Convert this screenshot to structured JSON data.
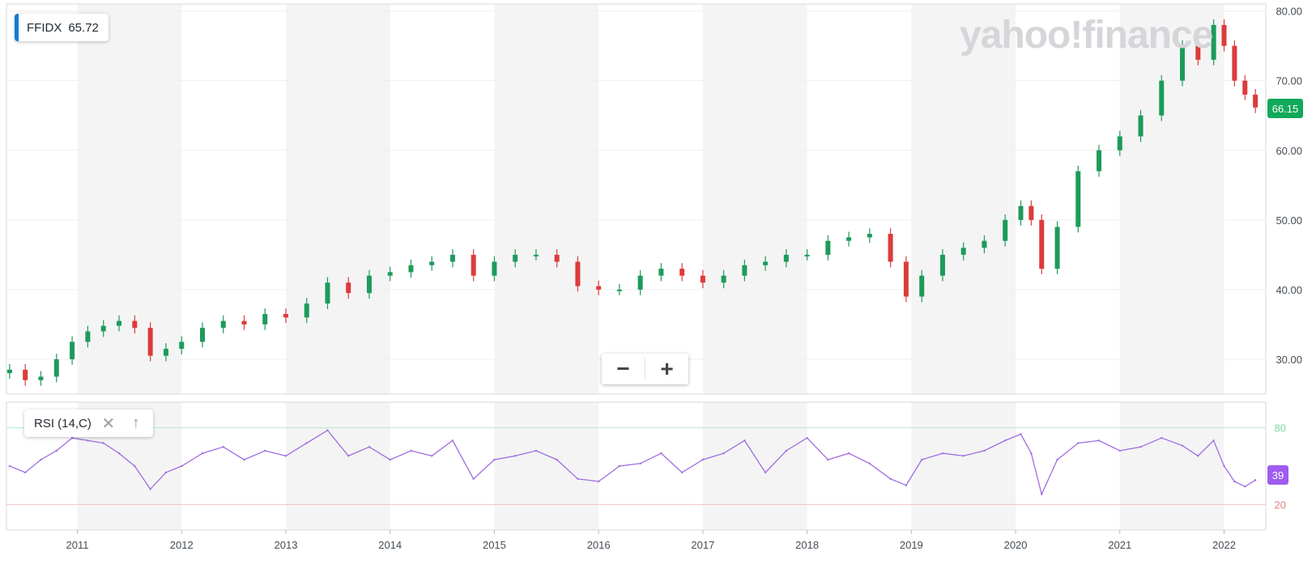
{
  "watermark": "yahoo!finance",
  "legend": {
    "symbol": "FFIDX",
    "value": "65.72"
  },
  "last_price_label": "66.15",
  "indicator": {
    "label": "RSI (14,C)",
    "last_label": "39",
    "close_icon": "close-icon",
    "move_icon": "arrow-up-icon"
  },
  "zoom": {
    "out_label": "−",
    "in_label": "+"
  },
  "colors": {
    "up": "#1c9b5b",
    "down": "#dd3b3b",
    "rsi": "#a06de0",
    "price_badge": "#11a95a",
    "rsi_badge": "#a05cf0"
  },
  "chart_data": [
    {
      "type": "candlestick",
      "symbol": "FFIDX",
      "x_range": [
        2010.32,
        2022.4
      ],
      "ylim": [
        25,
        81
      ],
      "y_ticks": [
        "30.00",
        "40.00",
        "50.00",
        "60.00",
        "70.00",
        "80.00"
      ],
      "x_ticks": [
        "2011",
        "2012",
        "2013",
        "2014",
        "2015",
        "2016",
        "2017",
        "2018",
        "2019",
        "2020",
        "2021",
        "2022"
      ],
      "grid": true,
      "alternating_year_bands": true,
      "series": {
        "x": [
          2010.35,
          2010.5,
          2010.65,
          2010.8,
          2010.95,
          2011.1,
          2011.25,
          2011.4,
          2011.55,
          2011.7,
          2011.85,
          2012.0,
          2012.2,
          2012.4,
          2012.6,
          2012.8,
          2013.0,
          2013.2,
          2013.4,
          2013.6,
          2013.8,
          2014.0,
          2014.2,
          2014.4,
          2014.6,
          2014.8,
          2015.0,
          2015.2,
          2015.4,
          2015.6,
          2015.8,
          2016.0,
          2016.2,
          2016.4,
          2016.6,
          2016.8,
          2017.0,
          2017.2,
          2017.4,
          2017.6,
          2017.8,
          2018.0,
          2018.2,
          2018.4,
          2018.6,
          2018.8,
          2018.95,
          2019.1,
          2019.3,
          2019.5,
          2019.7,
          2019.9,
          2020.05,
          2020.15,
          2020.25,
          2020.4,
          2020.6,
          2020.8,
          2021.0,
          2021.2,
          2021.4,
          2021.6,
          2021.75,
          2021.9,
          2022.0,
          2022.1,
          2022.2,
          2022.3
        ],
        "values": [
          28.5,
          27,
          27.5,
          30,
          32.5,
          34,
          34.8,
          35.5,
          34.5,
          30.5,
          31.5,
          32.5,
          34.5,
          35.5,
          35,
          36.5,
          36,
          38,
          41,
          39.5,
          42,
          42.5,
          43.5,
          44,
          45,
          42,
          44,
          45,
          45,
          44,
          40.5,
          40,
          40,
          42,
          43,
          42,
          41,
          42,
          43.5,
          44,
          45,
          45,
          47,
          47.5,
          48,
          44,
          39,
          42,
          45,
          46,
          47,
          50,
          52,
          50,
          43,
          49,
          57,
          60,
          62,
          65,
          70,
          75,
          73,
          78,
          75,
          70,
          68,
          66.15
        ]
      }
    },
    {
      "type": "line",
      "name": "RSI (14,C)",
      "ylim": [
        0,
        100
      ],
      "y_ticks": [
        "20",
        "80"
      ],
      "series": {
        "x": [
          2010.35,
          2010.5,
          2010.65,
          2010.8,
          2010.95,
          2011.1,
          2011.25,
          2011.4,
          2011.55,
          2011.7,
          2011.85,
          2012.0,
          2012.2,
          2012.4,
          2012.6,
          2012.8,
          2013.0,
          2013.2,
          2013.4,
          2013.6,
          2013.8,
          2014.0,
          2014.2,
          2014.4,
          2014.6,
          2014.8,
          2015.0,
          2015.2,
          2015.4,
          2015.6,
          2015.8,
          2016.0,
          2016.2,
          2016.4,
          2016.6,
          2016.8,
          2017.0,
          2017.2,
          2017.4,
          2017.6,
          2017.8,
          2018.0,
          2018.2,
          2018.4,
          2018.6,
          2018.8,
          2018.95,
          2019.1,
          2019.3,
          2019.5,
          2019.7,
          2019.9,
          2020.05,
          2020.15,
          2020.25,
          2020.4,
          2020.6,
          2020.8,
          2021.0,
          2021.2,
          2021.4,
          2021.6,
          2021.75,
          2021.9,
          2022.0,
          2022.1,
          2022.2,
          2022.3
        ],
        "values": [
          50,
          45,
          55,
          62,
          72,
          70,
          68,
          60,
          50,
          32,
          45,
          50,
          60,
          65,
          55,
          62,
          58,
          68,
          78,
          58,
          65,
          55,
          62,
          58,
          70,
          40,
          55,
          58,
          62,
          55,
          40,
          38,
          50,
          52,
          60,
          45,
          55,
          60,
          70,
          45,
          62,
          72,
          55,
          60,
          52,
          40,
          35,
          55,
          60,
          58,
          62,
          70,
          75,
          60,
          28,
          55,
          68,
          70,
          62,
          65,
          72,
          66,
          58,
          70,
          50,
          38,
          34,
          39
        ]
      }
    }
  ]
}
